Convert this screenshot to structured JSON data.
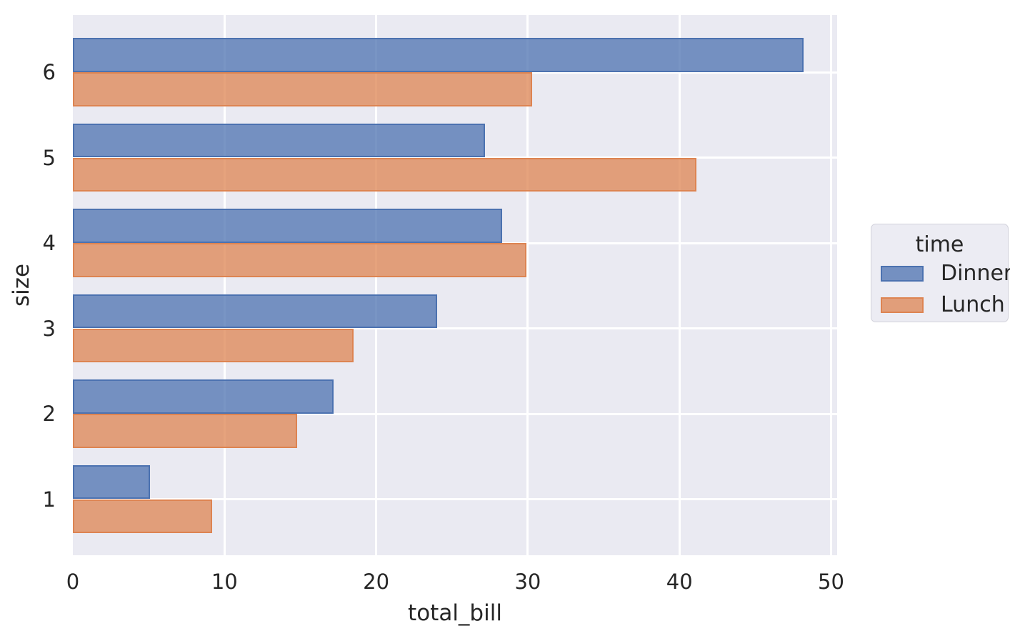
{
  "chart_data": {
    "type": "bar",
    "orientation": "horizontal",
    "title": "",
    "xlabel": "total_bill",
    "ylabel": "size",
    "categories": [
      "6",
      "5",
      "4",
      "3",
      "2",
      "1"
    ],
    "series": [
      {
        "name": "Dinner",
        "values": [
          48.2,
          27.2,
          28.3,
          24.0,
          17.2,
          5.1
        ],
        "fill": "rgba(76,114,176,0.75)",
        "edge": "#4c72b0"
      },
      {
        "name": "Lunch",
        "values": [
          30.3,
          41.1,
          29.9,
          18.5,
          14.8,
          9.2
        ],
        "fill": "rgba(221,132,82,0.75)",
        "edge": "#dd8452"
      }
    ],
    "xlim": [
      0,
      50.4
    ],
    "xticks": [
      0,
      10,
      20,
      30,
      40,
      50
    ],
    "grid": true,
    "legend": {
      "title": "time",
      "entries": [
        "Dinner",
        "Lunch"
      ],
      "position": "center right"
    },
    "colors": {
      "plot_background": "#eaeaf2",
      "gridline": "#ffffff",
      "dinner_edge": "#4c72b0",
      "lunch_edge": "#dd8452",
      "text": "#262626"
    }
  }
}
